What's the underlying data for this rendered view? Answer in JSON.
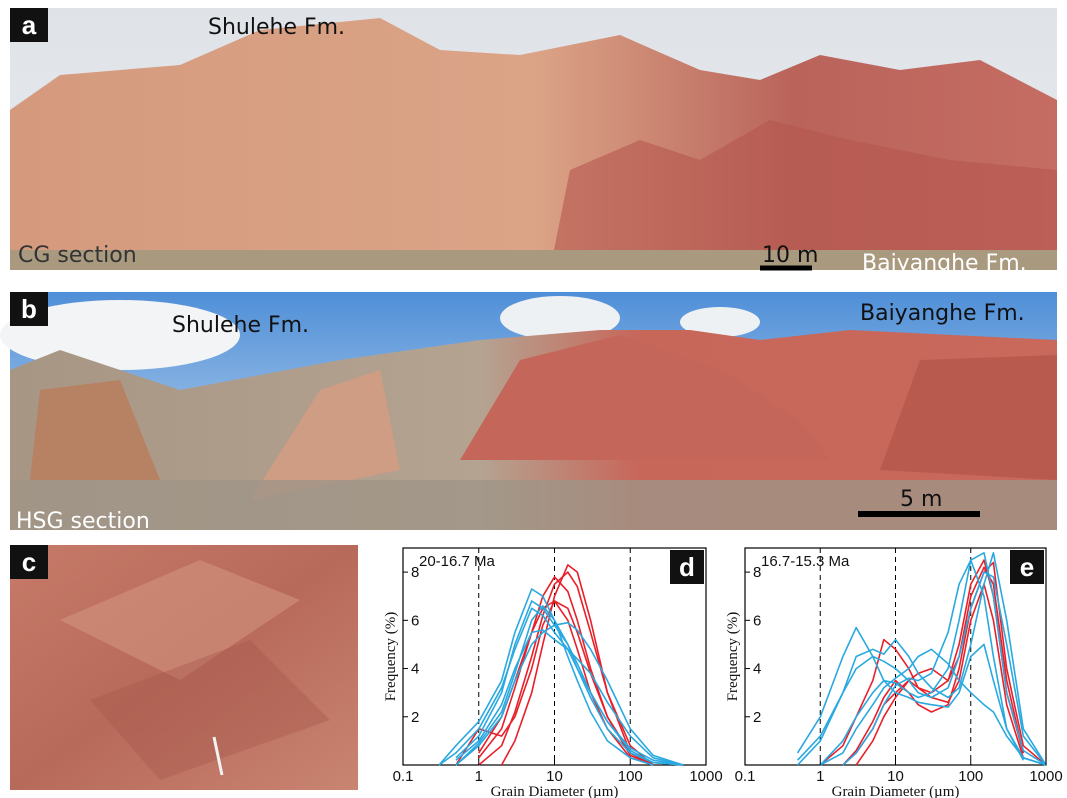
{
  "panels": {
    "a": {
      "label": "a",
      "formation_top": "Shulehe Fm.",
      "section": "CG section",
      "scale": "10 m",
      "formation_bottom": "Baiyanghe Fm."
    },
    "b": {
      "label": "b",
      "formation_left": "Shulehe Fm.",
      "formation_right": "Baiyanghe Fm.",
      "section": "HSG section",
      "scale": "5 m"
    },
    "c": {
      "label": "c"
    }
  },
  "chart_data": [
    {
      "type": "line",
      "label": "d",
      "annotation": "20-16.7 Ma",
      "x_label": "Grain Diameter (µm)",
      "y_label": "Frequency (%)",
      "log_x": true,
      "xlim": [
        0.1,
        1000
      ],
      "xticks": [
        0.1,
        1,
        10,
        100,
        1000
      ],
      "ylim": [
        0,
        9
      ],
      "yticks": [
        2,
        4,
        6,
        8
      ],
      "reference_lines": [
        1,
        10,
        100
      ],
      "x": [
        0.3,
        0.5,
        1,
        2,
        3,
        5,
        7,
        10,
        15,
        20,
        30,
        50,
        100,
        200,
        500
      ],
      "series": [
        {
          "color": "#e8202a",
          "values": [
            null,
            null,
            0,
            0.8,
            2.2,
            4.5,
            6.2,
            7.5,
            8.0,
            7.4,
            5.5,
            3.0,
            0.8,
            0,
            null
          ]
        },
        {
          "color": "#e8202a",
          "values": [
            null,
            null,
            0.3,
            1.5,
            3.2,
            5.5,
            7.0,
            7.8,
            7.2,
            6.0,
            4.0,
            2.0,
            0.4,
            0,
            null
          ]
        },
        {
          "color": "#e8202a",
          "values": [
            null,
            null,
            null,
            0,
            1.0,
            3.0,
            5.0,
            7.0,
            8.3,
            8.0,
            6.0,
            3.0,
            0.5,
            0,
            null
          ]
        },
        {
          "color": "#e8202a",
          "values": [
            null,
            0,
            1.5,
            1.2,
            2.0,
            4.0,
            5.8,
            6.8,
            6.5,
            5.5,
            3.8,
            2.0,
            0.5,
            0,
            null
          ]
        },
        {
          "color": "#e8202a",
          "values": [
            null,
            null,
            0.5,
            2.0,
            3.5,
            5.5,
            6.5,
            6.8,
            6.0,
            4.8,
            3.0,
            1.5,
            0.3,
            0,
            null
          ]
        },
        {
          "color": "#29a9e0",
          "values": [
            0,
            0.8,
            1.8,
            3.5,
            5.5,
            7.3,
            7.0,
            6.0,
            4.5,
            3.5,
            2.2,
            1.0,
            0.3,
            0,
            null
          ]
        },
        {
          "color": "#29a9e0",
          "values": [
            null,
            0.3,
            1.2,
            3.0,
            5.0,
            6.8,
            6.5,
            5.8,
            5.0,
            4.2,
            3.0,
            1.8,
            0.7,
            0.2,
            0
          ]
        },
        {
          "color": "#29a9e0",
          "values": [
            null,
            0,
            0.8,
            2.0,
            3.5,
            5.0,
            5.5,
            5.8,
            5.9,
            5.6,
            4.8,
            3.5,
            1.5,
            0.4,
            0
          ]
        },
        {
          "color": "#29a9e0",
          "values": [
            0,
            0.5,
            1.5,
            3.2,
            4.8,
            6.5,
            6.2,
            5.5,
            4.8,
            4.0,
            3.0,
            1.8,
            0.6,
            0.1,
            0
          ]
        },
        {
          "color": "#29a9e0",
          "values": [
            null,
            0.2,
            1.0,
            2.5,
            4.0,
            5.5,
            5.6,
            5.2,
            4.8,
            4.4,
            3.8,
            2.6,
            1.2,
            0.3,
            0
          ]
        },
        {
          "color": "#29a9e0",
          "values": [
            null,
            0,
            0.9,
            2.2,
            3.8,
            6.0,
            6.6,
            6.0,
            5.0,
            4.0,
            2.8,
            1.5,
            0.5,
            0.1,
            0
          ]
        }
      ]
    },
    {
      "type": "line",
      "label": "e",
      "annotation": "16.7-15.3 Ma",
      "x_label": "Grain Diameter (µm)",
      "y_label": "Frequency (%)",
      "log_x": true,
      "xlim": [
        0.1,
        1000
      ],
      "xticks": [
        0.1,
        1,
        10,
        100,
        1000
      ],
      "ylim": [
        0,
        9
      ],
      "yticks": [
        2,
        4,
        6,
        8
      ],
      "reference_lines": [
        1,
        10,
        100
      ],
      "x": [
        0.5,
        1,
        2,
        3,
        5,
        7,
        10,
        15,
        20,
        30,
        50,
        70,
        100,
        150,
        200,
        300,
        500,
        1000
      ],
      "series": [
        {
          "color": "#e8202a",
          "values": [
            null,
            null,
            0,
            0.5,
            1.5,
            2.5,
            3.0,
            3.5,
            3.2,
            3.0,
            3.5,
            5.0,
            7.5,
            8.5,
            7.0,
            3.0,
            0.5,
            null
          ]
        },
        {
          "color": "#e8202a",
          "values": [
            null,
            null,
            null,
            0,
            1.0,
            2.0,
            2.8,
            3.5,
            3.8,
            4.0,
            3.5,
            4.5,
            7.0,
            8.2,
            7.5,
            3.5,
            0.5,
            null
          ]
        },
        {
          "color": "#e8202a",
          "values": [
            null,
            0,
            0.8,
            2.0,
            3.5,
            5.2,
            4.8,
            4.0,
            3.2,
            2.8,
            2.6,
            3.5,
            6.0,
            7.5,
            6.0,
            2.5,
            0.3,
            null
          ]
        },
        {
          "color": "#e8202a",
          "values": [
            null,
            null,
            0,
            0.6,
            1.8,
            2.8,
            3.5,
            3.0,
            2.5,
            2.2,
            2.5,
            4.0,
            6.5,
            8.0,
            8.4,
            4.0,
            0.8,
            0
          ]
        },
        {
          "color": "#29a9e0",
          "values": [
            0.5,
            2.0,
            4.5,
            5.7,
            4.5,
            3.5,
            3.0,
            2.8,
            2.6,
            2.5,
            2.4,
            3.0,
            4.5,
            5.0,
            3.5,
            1.5,
            0.3,
            0
          ]
        },
        {
          "color": "#29a9e0",
          "values": [
            0,
            1.0,
            3.0,
            4.5,
            4.8,
            4.6,
            5.2,
            4.5,
            3.8,
            3.2,
            2.8,
            3.2,
            5.0,
            7.5,
            8.8,
            6.0,
            1.5,
            0
          ]
        },
        {
          "color": "#29a9e0",
          "values": [
            null,
            0,
            0.5,
            1.5,
            2.5,
            3.2,
            3.6,
            4.0,
            4.5,
            4.8,
            4.2,
            3.5,
            3.0,
            2.5,
            2.2,
            1.2,
            0.3,
            0
          ]
        },
        {
          "color": "#29a9e0",
          "values": [
            null,
            0,
            1.0,
            2.0,
            3.0,
            3.5,
            3.4,
            3.0,
            2.8,
            3.0,
            4.0,
            6.0,
            8.5,
            8.8,
            7.0,
            3.0,
            0.6,
            0
          ]
        },
        {
          "color": "#29a9e0",
          "values": [
            null,
            null,
            0,
            0.5,
            1.5,
            2.5,
            3.3,
            3.6,
            3.5,
            3.8,
            5.5,
            7.5,
            8.5,
            7.0,
            4.5,
            1.5,
            0.2,
            null
          ]
        },
        {
          "color": "#29a9e0",
          "values": [
            0.2,
            1.2,
            3.0,
            4.0,
            4.5,
            4.3,
            4.0,
            3.5,
            3.0,
            2.8,
            3.2,
            4.5,
            6.5,
            8.0,
            7.8,
            5.0,
            1.2,
            0
          ]
        }
      ]
    }
  ]
}
